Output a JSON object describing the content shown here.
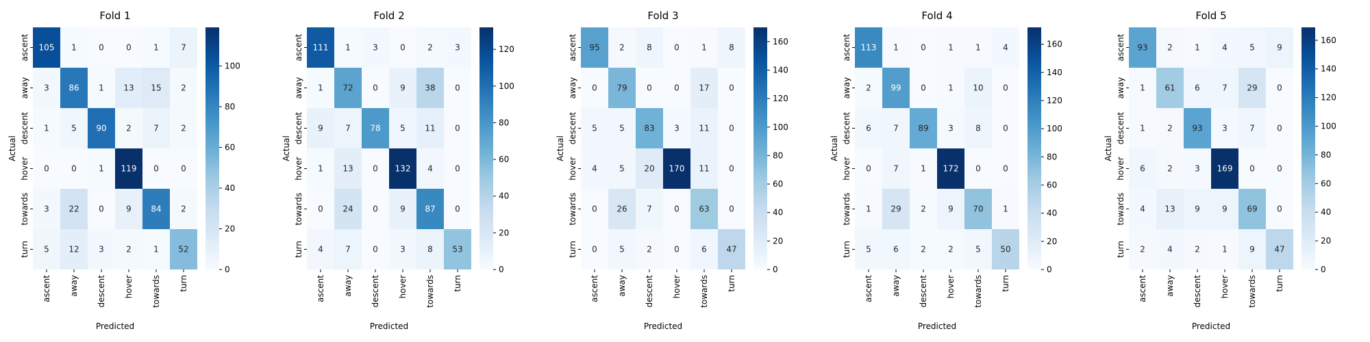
{
  "chart_data": {
    "type": "heatmap",
    "colormap": "Blues",
    "labels": [
      "ascent",
      "away",
      "descent",
      "hover",
      "towards",
      "turn"
    ],
    "xlabel": "Predicted",
    "ylabel": "Actual",
    "annotated": true,
    "panels": [
      {
        "title": "Fold 1",
        "colorbar_ticks": [
          0,
          20,
          40,
          60,
          80,
          100
        ],
        "vmin": 0,
        "vmax": 119,
        "matrix": [
          [
            105,
            1,
            0,
            0,
            1,
            7
          ],
          [
            3,
            86,
            1,
            13,
            15,
            2
          ],
          [
            1,
            5,
            90,
            2,
            7,
            2
          ],
          [
            0,
            0,
            1,
            119,
            0,
            0
          ],
          [
            3,
            22,
            0,
            9,
            84,
            2
          ],
          [
            5,
            12,
            3,
            2,
            1,
            52
          ]
        ]
      },
      {
        "title": "Fold 2",
        "colorbar_ticks": [
          0,
          20,
          40,
          60,
          80,
          100,
          120
        ],
        "vmin": 0,
        "vmax": 132,
        "matrix": [
          [
            111,
            1,
            3,
            0,
            2,
            3
          ],
          [
            1,
            72,
            0,
            9,
            38,
            0
          ],
          [
            9,
            7,
            78,
            5,
            11,
            0
          ],
          [
            1,
            13,
            0,
            132,
            4,
            0
          ],
          [
            0,
            24,
            0,
            9,
            87,
            0
          ],
          [
            4,
            7,
            0,
            3,
            8,
            53
          ]
        ]
      },
      {
        "title": "Fold 3",
        "colorbar_ticks": [
          0,
          20,
          40,
          60,
          80,
          100,
          120,
          140,
          160
        ],
        "vmin": 0,
        "vmax": 170,
        "matrix": [
          [
            95,
            2,
            8,
            0,
            1,
            8
          ],
          [
            0,
            79,
            0,
            0,
            17,
            0
          ],
          [
            5,
            5,
            83,
            3,
            11,
            0
          ],
          [
            4,
            5,
            20,
            170,
            11,
            0
          ],
          [
            0,
            26,
            7,
            0,
            63,
            0
          ],
          [
            0,
            5,
            2,
            0,
            6,
            47
          ]
        ]
      },
      {
        "title": "Fold 4",
        "colorbar_ticks": [
          0,
          20,
          40,
          60,
          80,
          100,
          120,
          140,
          160
        ],
        "vmin": 0,
        "vmax": 172,
        "matrix": [
          [
            113,
            1,
            0,
            1,
            1,
            4
          ],
          [
            2,
            99,
            0,
            1,
            10,
            0
          ],
          [
            6,
            7,
            89,
            3,
            8,
            0
          ],
          [
            0,
            7,
            1,
            172,
            0,
            0
          ],
          [
            1,
            29,
            2,
            9,
            70,
            1
          ],
          [
            5,
            6,
            2,
            2,
            5,
            50
          ]
        ]
      },
      {
        "title": "Fold 5",
        "colorbar_ticks": [
          0,
          20,
          40,
          60,
          80,
          100,
          120,
          140,
          160
        ],
        "vmin": 0,
        "vmax": 169,
        "matrix": [
          [
            93,
            2,
            1,
            4,
            5,
            9
          ],
          [
            1,
            61,
            6,
            7,
            29,
            0
          ],
          [
            1,
            2,
            93,
            3,
            7,
            0
          ],
          [
            6,
            2,
            3,
            169,
            0,
            0
          ],
          [
            4,
            13,
            9,
            9,
            69,
            0
          ],
          [
            2,
            4,
            2,
            1,
            9,
            47
          ]
        ]
      }
    ]
  }
}
